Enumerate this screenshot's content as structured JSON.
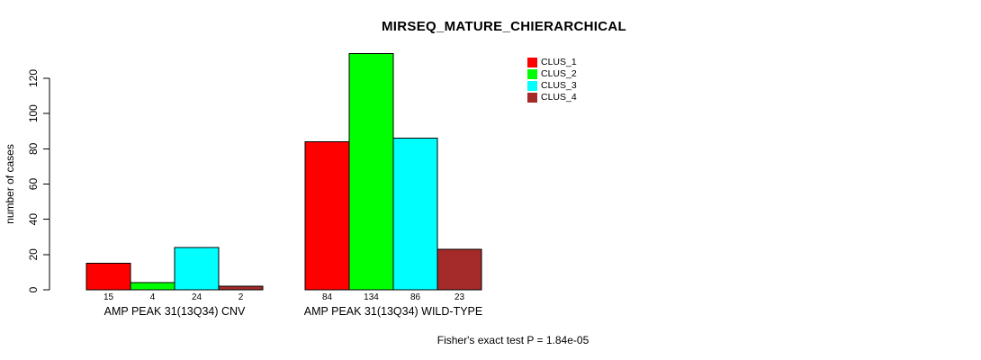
{
  "chart_data": {
    "type": "bar",
    "title": "MIRSEQ_MATURE_CHIERARCHICAL",
    "ylabel": "number of cases",
    "yticks": [
      0,
      20,
      40,
      60,
      80,
      100,
      120
    ],
    "ylim": [
      0,
      137
    ],
    "grid": false,
    "legend_position": "top-right",
    "categories": [
      "AMP PEAK 31(13Q34) CNV",
      "AMP PEAK 31(13Q34) WILD-TYPE"
    ],
    "series": [
      {
        "name": "CLUS_1",
        "color": "#FF0000",
        "values": [
          15,
          84
        ]
      },
      {
        "name": "CLUS_2",
        "color": "#00FF00",
        "values": [
          4,
          134
        ]
      },
      {
        "name": "CLUS_3",
        "color": "#00FFFF",
        "values": [
          24,
          86
        ]
      },
      {
        "name": "CLUS_4",
        "color": "#A52A2A",
        "values": [
          2,
          23
        ]
      }
    ],
    "bar_value_labels": [
      [
        15,
        4,
        24,
        2
      ],
      [
        84,
        134,
        86,
        23
      ]
    ],
    "annotation": "Fisher's exact test P = 1.84e-05"
  }
}
